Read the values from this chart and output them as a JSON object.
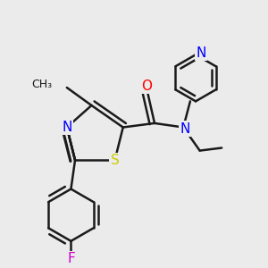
{
  "bg_color": "#ebebeb",
  "bond_color": "#1a1a1a",
  "bond_width": 1.8,
  "atom_colors": {
    "N": "#0000ff",
    "S": "#cccc00",
    "O": "#ff0000",
    "F": "#cc00cc",
    "C": "#1a1a1a"
  },
  "font_size": 11
}
